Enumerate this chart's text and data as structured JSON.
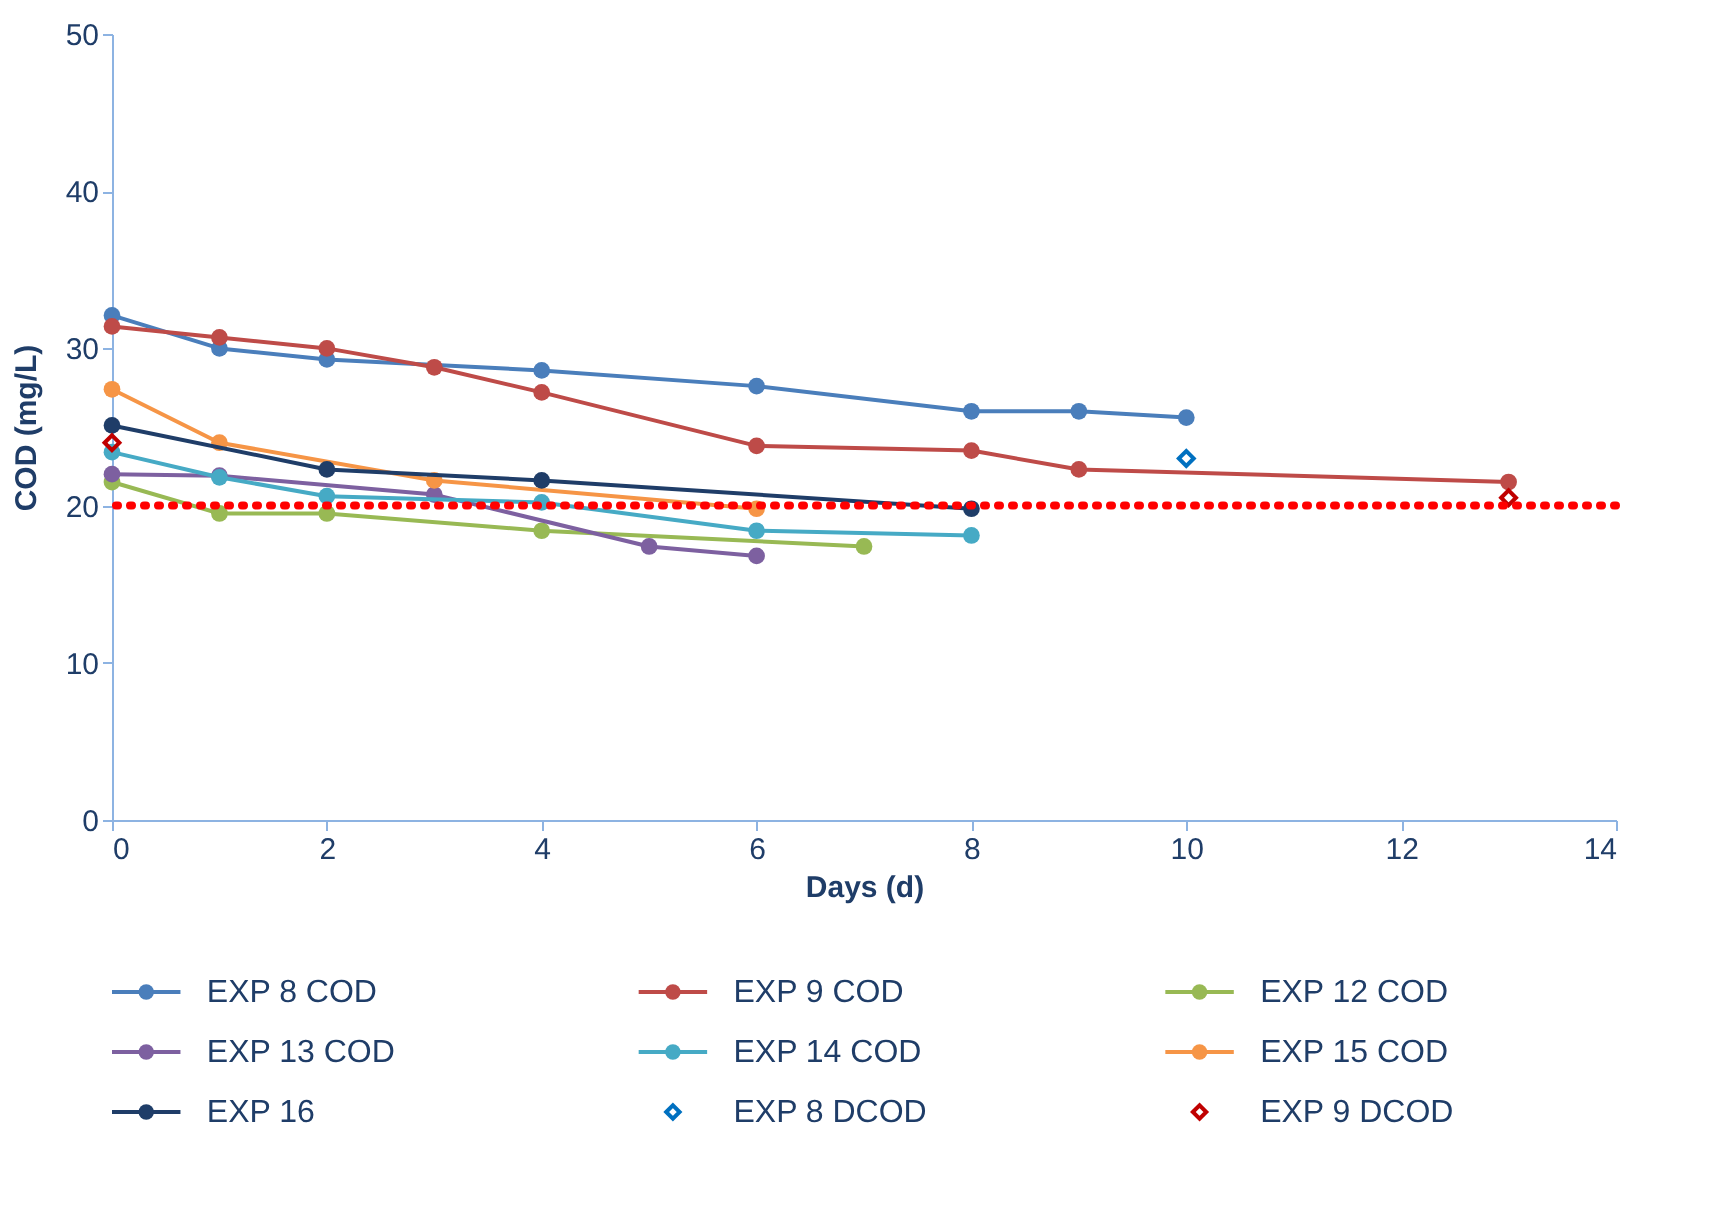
{
  "chart_data": {
    "type": "line",
    "xlabel": "Days (d)",
    "ylabel": "COD  (mg/L)",
    "xlim": [
      0,
      14
    ],
    "xticks": [
      0,
      2,
      4,
      6,
      8,
      10,
      12,
      14
    ],
    "ylim": [
      0,
      50
    ],
    "yticks": [
      0,
      10,
      20,
      30,
      40,
      50
    ],
    "grid": false,
    "legend": "bottom",
    "marker": "circle",
    "series": [
      {
        "name": "EXP 8 COD",
        "color": "#4a7ebb",
        "x": [
          0,
          1,
          2,
          4,
          6,
          8,
          9,
          10
        ],
        "values": [
          32.1,
          30.0,
          29.3,
          28.6,
          27.6,
          26.0,
          26.0,
          25.6
        ]
      },
      {
        "name": "EXP 9 COD",
        "color": "#be4b48",
        "x": [
          0,
          1,
          2,
          3,
          4,
          6,
          8,
          9,
          13
        ],
        "values": [
          31.4,
          30.7,
          30.0,
          28.8,
          27.2,
          23.8,
          23.5,
          22.3,
          21.5
        ]
      },
      {
        "name": "EXP 12 COD",
        "color": "#98b954",
        "x": [
          0,
          1,
          2,
          4,
          7
        ],
        "values": [
          21.5,
          19.5,
          19.5,
          18.4,
          17.4
        ]
      },
      {
        "name": "EXP 13 COD",
        "color": "#7d60a0",
        "x": [
          0,
          1,
          3,
          5,
          6
        ],
        "values": [
          22.0,
          21.9,
          20.7,
          17.4,
          16.8
        ]
      },
      {
        "name": "EXP 14 COD",
        "color": "#46aac5",
        "x": [
          0,
          1,
          2,
          4,
          6,
          8
        ],
        "values": [
          23.4,
          21.8,
          20.6,
          20.2,
          18.4,
          18.1
        ]
      },
      {
        "name": "EXP 15 COD",
        "color": "#f69546",
        "x": [
          0,
          1,
          3,
          6
        ],
        "values": [
          27.4,
          24.0,
          21.6,
          19.8
        ]
      },
      {
        "name": "EXP 16",
        "color": "#1f3d68",
        "x": [
          0,
          2,
          4,
          8
        ],
        "values": [
          25.1,
          22.3,
          21.6,
          19.8
        ]
      },
      {
        "name": "EXP 8 DCOD",
        "color": "#0070c0",
        "type": "scatter",
        "marker": "diamond",
        "x": [
          10
        ],
        "values": [
          23.0
        ]
      },
      {
        "name": "EXP 9 DCOD",
        "color": "#c00000",
        "type": "scatter",
        "marker": "diamond",
        "x": [
          0,
          13
        ],
        "values": [
          24.0,
          20.5
        ]
      }
    ],
    "ref_lines": [
      {
        "axis": "y",
        "value": 20,
        "color": "#ff0000",
        "line_style": "dotted"
      }
    ]
  }
}
